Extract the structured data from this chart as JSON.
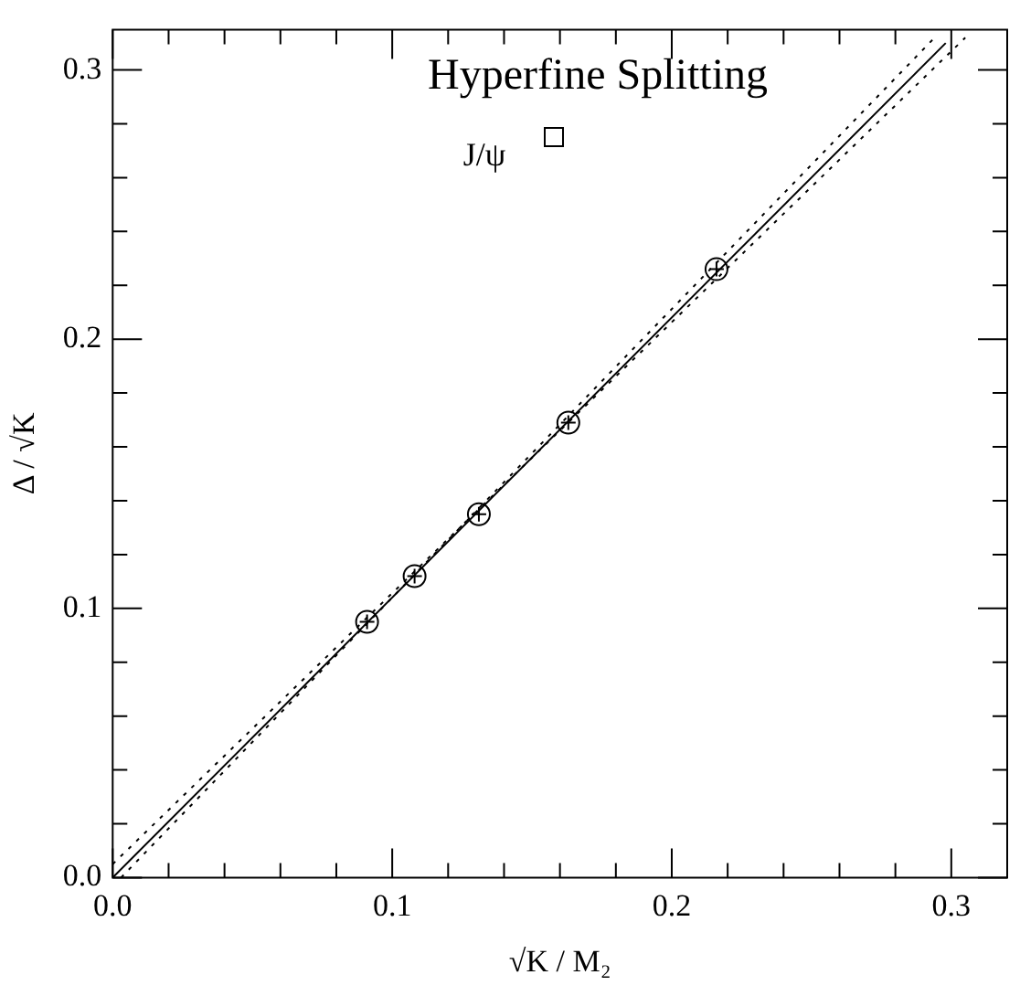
{
  "chart_data": {
    "type": "scatter",
    "title": "Hyperfine Splitting",
    "xlabel": "√K / M₂",
    "ylabel": "Δ / √K",
    "annotations": [
      "J/ψ"
    ],
    "xlim": [
      0,
      0.32
    ],
    "ylim": [
      0,
      0.315
    ],
    "xticks": [
      {
        "value": 0,
        "label": "0.0"
      },
      {
        "value": 0.02,
        "label": null
      },
      {
        "value": 0.04,
        "label": null
      },
      {
        "value": 0.06,
        "label": null
      },
      {
        "value": 0.08,
        "label": null
      },
      0.1,
      {
        "value": 0.12,
        "label": null
      },
      {
        "value": 0.14,
        "label": null
      },
      {
        "value": 0.16,
        "label": null
      },
      {
        "value": 0.18,
        "label": null
      },
      0.2,
      {
        "value": 0.22,
        "label": null
      },
      {
        "value": 0.24,
        "label": null
      },
      {
        "value": 0.26,
        "label": null
      },
      {
        "value": 0.28,
        "label": null
      },
      0.3
    ],
    "yticks": [
      {
        "value": 0,
        "label": "0.0"
      },
      {
        "value": 0.02,
        "label": null
      },
      {
        "value": 0.04,
        "label": null
      },
      {
        "value": 0.06,
        "label": null
      },
      {
        "value": 0.08,
        "label": null
      },
      0.1,
      {
        "value": 0.12,
        "label": null
      },
      {
        "value": 0.14,
        "label": null
      },
      {
        "value": 0.16,
        "label": null
      },
      {
        "value": 0.18,
        "label": null
      },
      0.2,
      {
        "value": 0.22,
        "label": null
      },
      {
        "value": 0.24,
        "label": null
      },
      {
        "value": 0.26,
        "label": null
      },
      {
        "value": 0.28,
        "label": null
      },
      0.3
    ],
    "grid": false,
    "legend": false,
    "series": [
      {
        "color": "#000000",
        "marker": "circle",
        "x": [
          0.091,
          0.108,
          0.131,
          0.163,
          0.216
        ],
        "values": [
          0.095,
          0.112,
          0.135,
          0.169,
          0.226
        ]
      },
      {
        "type": "line",
        "color": "#000000",
        "marker": "none",
        "line_style": "solid",
        "x": [
          0,
          0.298
        ],
        "values": [
          0,
          0.31
        ]
      },
      {
        "type": "line",
        "color": "#000000",
        "marker": "none",
        "line_style": "dotted",
        "x": [
          0.003,
          0.294
        ],
        "values": [
          0,
          0.312
        ]
      },
      {
        "type": "line",
        "color": "#000000",
        "marker": "none",
        "line_style": "dotted",
        "x": [
          0,
          0.305
        ],
        "values": [
          0.005,
          0.312
        ]
      }
    ]
  }
}
